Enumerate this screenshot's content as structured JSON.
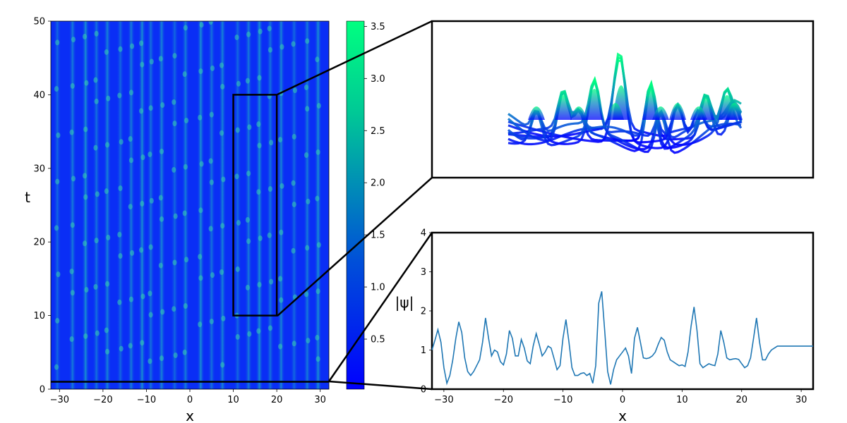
{
  "chart_data": [
    {
      "type": "heatmap",
      "xlabel": "x",
      "ylabel": "t",
      "xlim": [
        -32,
        32
      ],
      "ylim": [
        0,
        50
      ],
      "xticks": [
        "−30",
        "−20",
        "−10",
        "0",
        "10",
        "20",
        "30"
      ],
      "yticks": [
        "0",
        "10",
        "20",
        "30",
        "40",
        "50"
      ],
      "xtick_values": [
        -30,
        -20,
        -10,
        0,
        10,
        20,
        30
      ],
      "ytick_values": [
        0,
        10,
        20,
        30,
        40,
        50
      ],
      "colormap": [
        "#0000ff",
        "#0050d8",
        "#00c896",
        "#00ff80"
      ],
      "zoom_rectangle": {
        "x": [
          10,
          20
        ],
        "t": [
          10,
          40
        ]
      },
      "slice_line_t": 1,
      "streak_positions": [
        -30.5,
        -27,
        -24,
        -21.5,
        -19,
        -16,
        -13.5,
        -11,
        -9,
        -6.5,
        -3.5,
        -1,
        2.5,
        5,
        7.5,
        11,
        13.5,
        16,
        18.5,
        21,
        24,
        27,
        29.5
      ],
      "colorbar": {
        "ticks": [
          "0.5",
          "1.0",
          "1.5",
          "2.0",
          "2.5",
          "3.0",
          "3.5"
        ],
        "tick_values": [
          0.5,
          1.0,
          1.5,
          2.0,
          2.5,
          3.0,
          3.5
        ],
        "range": [
          0.02,
          3.55
        ]
      }
    },
    {
      "type": "area",
      "description_kind": "3d-surface",
      "colormap": [
        "#0000ff",
        "#00ff80"
      ]
    },
    {
      "type": "line",
      "xlabel": "x",
      "ylabel": "|ψ|",
      "xlim": [
        -32,
        32
      ],
      "ylim": [
        0,
        4
      ],
      "xticks": [
        "−30",
        "−20",
        "−10",
        "0",
        "10",
        "20",
        "30"
      ],
      "yticks": [
        "0",
        "1",
        "2",
        "3",
        "4"
      ],
      "xtick_values": [
        -30,
        -20,
        -10,
        0,
        10,
        20,
        30
      ],
      "ytick_values": [
        0,
        1,
        2,
        3,
        4
      ],
      "color": "#1f77b4",
      "series": [
        {
          "x": [
            -32,
            -31.5,
            -31,
            -30.5,
            -30,
            -29.5,
            -29,
            -28.5,
            -28,
            -27.5,
            -27,
            -26.5,
            -26,
            -25.5,
            -25,
            -24.5,
            -24,
            -23.5,
            -23,
            -22.5,
            -22,
            -21.5,
            -21,
            -20.5,
            -20,
            -19.5,
            -19,
            -18.5,
            -18,
            -17.5,
            -17,
            -16.5,
            -16,
            -15.5,
            -15,
            -14.5,
            -14,
            -13.5,
            -13,
            -12.5,
            -12,
            -11.5,
            -11,
            -10.5,
            -10,
            -9.5,
            -9,
            -8.5,
            -8,
            -7.5,
            -7,
            -6.5,
            -6,
            -5.5,
            -5,
            -4.5,
            -4,
            -3.5,
            -3,
            -2.5,
            -2,
            -1.5,
            -1,
            -0.5,
            0,
            0.5,
            1,
            1.5,
            2,
            2.5,
            3,
            3.5,
            4,
            4.5,
            5,
            5.5,
            6,
            6.5,
            7,
            7.5,
            8,
            8.5,
            9,
            9.5,
            10,
            10.5,
            11,
            11.5,
            12,
            12.5,
            13,
            13.5,
            14,
            14.5,
            15,
            15.5,
            16,
            16.5,
            17,
            17.5,
            18,
            18.5,
            19,
            19.5,
            20,
            20.5,
            21,
            21.5,
            22,
            22.5,
            23,
            23.5,
            24,
            24.5,
            25,
            25.5,
            26,
            26.5,
            27,
            27.5,
            28,
            28.5,
            29,
            29.5,
            30,
            30.5,
            31,
            31.5,
            32
          ],
          "y": [
            1.0,
            1.25,
            1.52,
            1.2,
            0.55,
            0.15,
            0.35,
            0.75,
            1.3,
            1.72,
            1.45,
            0.8,
            0.45,
            0.35,
            0.45,
            0.6,
            0.75,
            1.2,
            1.82,
            1.3,
            0.85,
            1.0,
            0.95,
            0.7,
            0.62,
            0.9,
            1.5,
            1.3,
            0.85,
            0.85,
            1.27,
            1.05,
            0.72,
            0.65,
            1.1,
            1.42,
            1.15,
            0.85,
            0.95,
            1.1,
            1.05,
            0.78,
            0.5,
            0.6,
            1.3,
            1.78,
            1.2,
            0.55,
            0.35,
            0.35,
            0.4,
            0.42,
            0.35,
            0.4,
            0.15,
            0.6,
            2.2,
            2.5,
            1.5,
            0.45,
            0.12,
            0.5,
            0.75,
            0.85,
            0.95,
            1.05,
            0.85,
            0.4,
            1.3,
            1.58,
            1.2,
            0.8,
            0.78,
            0.8,
            0.85,
            0.95,
            1.15,
            1.32,
            1.25,
            0.95,
            0.75,
            0.7,
            0.65,
            0.6,
            0.62,
            0.58,
            0.95,
            1.6,
            2.1,
            1.5,
            0.65,
            0.55,
            0.6,
            0.65,
            0.62,
            0.6,
            0.9,
            1.5,
            1.2,
            0.8,
            0.75,
            0.77,
            0.78,
            0.76,
            0.65,
            0.55,
            0.6,
            0.8,
            1.3,
            1.82,
            1.2,
            0.75,
            0.75,
            0.9,
            1.0,
            1.05,
            1.1,
            1.1,
            1.1,
            1.1,
            1.1,
            1.1,
            1.1,
            1.1,
            1.1,
            1.1,
            1.1,
            1.1,
            1.1
          ]
        }
      ]
    }
  ]
}
